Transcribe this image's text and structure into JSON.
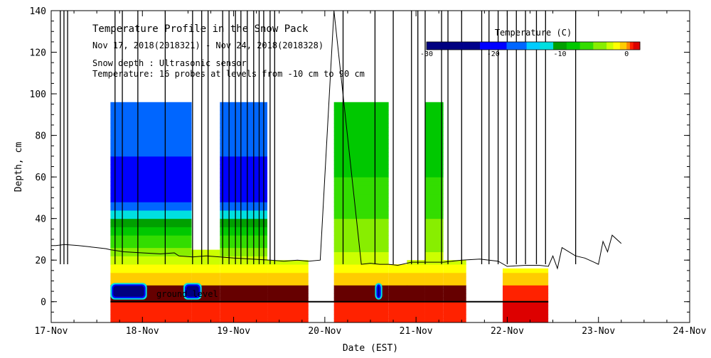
{
  "chart_data": {
    "type": "heatmap",
    "title": "Temperature Profile in the Snow Pack",
    "subtitle": "Nov 17, 2018(2018321) - Nov 24, 2018(2018328)",
    "annotations": [
      "Snow depth : Ultrasonic sensor",
      "Temperature: 16 probes at levels from -10 cm to 90 cm"
    ],
    "ground_label": "ground level",
    "xlabel": "Date (EST)",
    "ylabel": "Depth, cm",
    "x_ticks": [
      "17-Nov",
      "18-Nov",
      "19-Nov",
      "20-Nov",
      "21-Nov",
      "22-Nov",
      "23-Nov",
      "24-Nov"
    ],
    "xlim": [
      17,
      24
    ],
    "ylim": [
      -10,
      140
    ],
    "y_ticks": [
      "0",
      "20",
      "40",
      "60",
      "80",
      "100",
      "120",
      "140"
    ],
    "colorbar": {
      "title": "Temperature (C)",
      "range": [
        -30,
        2
      ],
      "tick_labels": [
        "-30",
        "-20",
        "-10",
        "0"
      ],
      "tick_values": [
        -30,
        -20,
        -10,
        0
      ]
    },
    "temperature_blocks": [
      {
        "x": [
          17.65,
          18.54
        ],
        "y": [
          -10,
          96
        ],
        "profile": "cold"
      },
      {
        "x": [
          18.54,
          18.85
        ],
        "y": [
          -10,
          25
        ],
        "profile": "mild"
      },
      {
        "x": [
          18.85,
          19.37
        ],
        "y": [
          -10,
          96
        ],
        "profile": "cold"
      },
      {
        "x": [
          19.37,
          19.82
        ],
        "y": [
          -10,
          20
        ],
        "profile": "mild"
      },
      {
        "x": [
          20.1,
          20.7
        ],
        "y": [
          -10,
          96
        ],
        "profile": "green"
      },
      {
        "x": [
          20.7,
          20.95
        ],
        "y": [
          -10,
          18
        ],
        "profile": "mild"
      },
      {
        "x": [
          20.9,
          21.1
        ],
        "y": [
          -10,
          20
        ],
        "profile": "mild"
      },
      {
        "x": [
          21.1,
          21.3
        ],
        "y": [
          -10,
          96
        ],
        "profile": "green"
      },
      {
        "x": [
          21.3,
          21.55
        ],
        "y": [
          -10,
          20
        ],
        "profile": "mild"
      },
      {
        "x": [
          21.95,
          22.45
        ],
        "y": [
          -10,
          16
        ],
        "profile": "warm"
      }
    ],
    "cold_spots": [
      {
        "x": [
          17.65,
          18.05
        ],
        "y": [
          1,
          9
        ]
      },
      {
        "x": [
          18.45,
          18.65
        ],
        "y": [
          1,
          9
        ]
      },
      {
        "x": [
          20.55,
          20.63
        ],
        "y": [
          1,
          9
        ]
      }
    ],
    "snow_depth": {
      "x": [
        17.0,
        17.05,
        17.15,
        17.3,
        17.5,
        17.6,
        17.65,
        17.8,
        18.0,
        18.2,
        18.35,
        18.4,
        18.55,
        18.7,
        18.85,
        19.0,
        19.2,
        19.4,
        19.55,
        19.7,
        19.82,
        19.95,
        20.1,
        20.4,
        20.5,
        20.6,
        20.7,
        20.8,
        20.95,
        21.1,
        21.3,
        21.5,
        21.7,
        21.9,
        22.0,
        22.2,
        22.35,
        22.45,
        22.5,
        22.55,
        22.6,
        22.75,
        22.85,
        22.95,
        23.0,
        23.05,
        23.1,
        23.15,
        23.25
      ],
      "y": [
        27,
        27,
        27.5,
        27,
        26,
        25.5,
        25,
        24,
        23.5,
        23,
        23.5,
        22,
        21.5,
        22,
        21.5,
        21,
        20.5,
        20,
        19.5,
        20,
        19.5,
        20,
        140,
        18,
        18.5,
        18,
        18,
        17.5,
        19,
        19,
        19,
        20,
        20.5,
        19.5,
        17,
        17.5,
        17.5,
        17,
        22,
        16,
        26,
        22,
        21,
        19,
        18,
        29,
        24,
        32,
        28
      ]
    },
    "sensor_spikes_x": [
      17.1,
      17.14,
      17.18,
      17.7,
      17.78,
      17.95,
      18.25,
      18.55,
      18.65,
      18.72,
      18.88,
      18.95,
      19.02,
      19.08,
      19.15,
      19.22,
      19.28,
      19.33,
      19.4,
      19.45,
      20.2,
      20.55,
      20.75,
      20.95,
      21.02,
      21.1,
      21.28,
      21.35,
      21.5,
      21.72,
      21.8,
      21.9,
      22.0,
      22.1,
      22.2,
      22.32,
      22.42,
      22.75
    ]
  }
}
